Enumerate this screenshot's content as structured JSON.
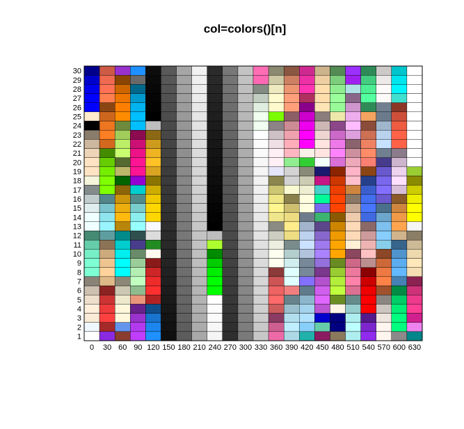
{
  "chart_data": {
    "type": "heatmap",
    "title": "col=colors()[n]",
    "xlabel": "",
    "ylabel": "",
    "x_tick_labels": [
      0,
      30,
      60,
      90,
      120,
      150,
      180,
      210,
      240,
      270,
      300,
      330,
      360,
      390,
      420,
      450,
      480,
      510,
      540,
      570,
      600,
      630
    ],
    "y_tick_labels": [
      1,
      2,
      3,
      4,
      5,
      6,
      7,
      8,
      9,
      10,
      11,
      12,
      13,
      14,
      15,
      16,
      17,
      18,
      19,
      20,
      21,
      22,
      23,
      24,
      25,
      26,
      27,
      28,
      29,
      30
    ],
    "cell_index_rule": "n = column + row",
    "cell_colors_by_column": [
      [
        "#ffffff",
        "#f0f8ff",
        "#faebd7",
        "#ffefdb",
        "#eedfcc",
        "#cdc0b0",
        "#8b8378",
        "#7fffd4",
        "#7fffd4",
        "#76eec6",
        "#66cdaa",
        "#458b74",
        "#f0ffff",
        "#f0ffff",
        "#e0eeee",
        "#c1cdcd",
        "#838b8b",
        "#f5f5dc",
        "#ffe4c4",
        "#ffe4c4",
        "#eed5b7",
        "#cdb79e",
        "#8b7d6b",
        "#000000",
        "#ffebcd",
        "#0000ff",
        "#0000ff",
        "#0000ee",
        "#0000cd",
        "#00008b"
      ],
      [
        "#8a2be2",
        "#a52a2a",
        "#ff4040",
        "#ee3b3b",
        "#cd3333",
        "#8b2323",
        "#deb887",
        "#ffd39b",
        "#eec591",
        "#cdaa7d",
        "#8b7355",
        "#5f9ea0",
        "#98f5ff",
        "#8ee5ee",
        "#7ac5cd",
        "#53868b",
        "#7fff00",
        "#7fff00",
        "#76ee00",
        "#66cd00",
        "#458b00",
        "#d2691e",
        "#ff7f24",
        "#ee7621",
        "#cd661d",
        "#8b4513",
        "#ff7f50",
        "#ff7256",
        "#ee6a50",
        "#cd5b45"
      ],
      [
        "#8b3e2f",
        "#6495ed",
        "#fff8dc",
        "#fff8dc",
        "#eee8cd",
        "#cdc8b1",
        "#8b8878",
        "#00ffff",
        "#00ffff",
        "#00eeee",
        "#00cdcd",
        "#008b8b",
        "#b8860b",
        "#ffb90f",
        "#eead0e",
        "#cd950c",
        "#8b6508",
        "#006400",
        "#bdb76b",
        "#556b2f",
        "#caff70",
        "#bcee68",
        "#a2cd5a",
        "#6e8b3d",
        "#ff8c00",
        "#ff7f00",
        "#ee7600",
        "#cd6600",
        "#8b4500",
        "#9932cc"
      ],
      [
        "#bf3eff",
        "#b23aee",
        "#9a32cd",
        "#68228b",
        "#e9967a",
        "#8fbc8f",
        "#c1ffc1",
        "#b4eeb4",
        "#9bcd9b",
        "#698b69",
        "#483d8b",
        "#2f4f4f",
        "#97ffff",
        "#8deeee",
        "#79cdcd",
        "#528b8b",
        "#00ced1",
        "#9400d3",
        "#ff1493",
        "#ff1493",
        "#ee1289",
        "#cd1076",
        "#8b0a50",
        "#00bfff",
        "#00bfff",
        "#00b2ee",
        "#009acd",
        "#00688b",
        "#696969",
        "#1e90ff"
      ],
      [
        "#1e90ff",
        "#1c86ee",
        "#1874cd",
        "#104e8b",
        "#b22222",
        "#ff3030",
        "#ee2c2c",
        "#cd2626",
        "#8b1a1a",
        "#fffaf0",
        "#228b22",
        "#dcdcdc",
        "#f8f8ff",
        "#ffd700",
        "#ffd700",
        "#eec900",
        "#cdad00",
        "#8b7500",
        "#daa520",
        "#ffc125",
        "#eeb422",
        "#cd9b1d",
        "#8b6914",
        "#bebebe",
        "#000000",
        "#030303",
        "#050505",
        "#080808",
        "#0a0a0a",
        "#0d0d0d"
      ],
      [
        "#0f0f0f",
        "#121212",
        "#141414",
        "#171717",
        "#1a1a1a",
        "#1c1c1c",
        "#1f1f1f",
        "#212121",
        "#242424",
        "#262626",
        "#292929",
        "#2b2b2b",
        "#2e2e2e",
        "#303030",
        "#333333",
        "#363636",
        "#383838",
        "#3b3b3b",
        "#3d3d3d",
        "#404040",
        "#424242",
        "#454545",
        "#474747",
        "#4a4a4a",
        "#4d4d4d",
        "#4f4f4f",
        "#525252",
        "#545454",
        "#575757",
        "#595959"
      ],
      [
        "#5c5c5c",
        "#5e5e5e",
        "#616161",
        "#636363",
        "#666666",
        "#696969",
        "#6b6b6b",
        "#6e6e6e",
        "#707070",
        "#737373",
        "#757575",
        "#787878",
        "#7a7a7a",
        "#7d7d7d",
        "#7f7f7f",
        "#828282",
        "#858585",
        "#878787",
        "#8a8a8a",
        "#8c8c8c",
        "#8f8f8f",
        "#919191",
        "#949494",
        "#969696",
        "#999999",
        "#9c9c9c",
        "#9e9e9e",
        "#a1a1a1",
        "#a3a3a3",
        "#a6a6a6"
      ],
      [
        "#a8a8a8",
        "#ababab",
        "#adadad",
        "#b0b0b0",
        "#b3b3b3",
        "#b5b5b5",
        "#b8b8b8",
        "#bababa",
        "#bdbdbd",
        "#bfbfbf",
        "#c2c2c2",
        "#c4c4c4",
        "#c7c7c7",
        "#c9c9c9",
        "#cccccc",
        "#cfcfcf",
        "#d1d1d1",
        "#d4d4d4",
        "#d6d6d6",
        "#d9d9d9",
        "#dbdbdb",
        "#dedede",
        "#e0e0e0",
        "#e3e3e3",
        "#e5e5e5",
        "#e8e8e8",
        "#ebebeb",
        "#ededed",
        "#f0f0f0",
        "#f2f2f2"
      ],
      [
        "#f5f5f5",
        "#f7f7f7",
        "#fafafa",
        "#fcfcfc",
        "#ffffff",
        "#00ff00",
        "#00ff00",
        "#00ee00",
        "#00cd00",
        "#008b00",
        "#adff2f",
        "#bebebe",
        "#000000",
        "#030303",
        "#050505",
        "#080808",
        "#0a0a0a",
        "#0d0d0d",
        "#0f0f0f",
        "#121212",
        "#141414",
        "#171717",
        "#1a1a1a",
        "#1c1c1c",
        "#1f1f1f",
        "#212121",
        "#242424",
        "#262626",
        "#292929",
        "#2b2b2b"
      ],
      [
        "#2e2e2e",
        "#303030",
        "#333333",
        "#363636",
        "#383838",
        "#3b3b3b",
        "#3d3d3d",
        "#404040",
        "#424242",
        "#454545",
        "#474747",
        "#4a4a4a",
        "#4d4d4d",
        "#4f4f4f",
        "#525252",
        "#545454",
        "#575757",
        "#595959",
        "#5c5c5c",
        "#5e5e5e",
        "#616161",
        "#636363",
        "#666666",
        "#696969",
        "#6b6b6b",
        "#6e6e6e",
        "#707070",
        "#737373",
        "#757575",
        "#787878"
      ],
      [
        "#7a7a7a",
        "#7d7d7d",
        "#7f7f7f",
        "#828282",
        "#858585",
        "#878787",
        "#8a8a8a",
        "#8c8c8c",
        "#8f8f8f",
        "#919191",
        "#949494",
        "#969696",
        "#999999",
        "#9c9c9c",
        "#9e9e9e",
        "#a1a1a1",
        "#a3a3a3",
        "#a6a6a6",
        "#a8a8a8",
        "#ababab",
        "#adadad",
        "#b0b0b0",
        "#b3b3b3",
        "#b5b5b5",
        "#b8b8b8",
        "#bababa",
        "#bdbdbd",
        "#bfbfbf",
        "#c2c2c2",
        "#c4c4c4"
      ],
      [
        "#c7c7c7",
        "#c9c9c9",
        "#cccccc",
        "#cfcfcf",
        "#d1d1d1",
        "#d4d4d4",
        "#d6d6d6",
        "#d9d9d9",
        "#dbdbdb",
        "#dedede",
        "#e0e0e0",
        "#e3e3e3",
        "#e5e5e5",
        "#e8e8e8",
        "#ebebeb",
        "#ededed",
        "#f0f0f0",
        "#f2f2f2",
        "#f5f5f5",
        "#f7f7f7",
        "#fafafa",
        "#fcfcfc",
        "#ffffff",
        "#f0fff0",
        "#f0fff0",
        "#e0eee0",
        "#c1cdc1",
        "#838b83",
        "#ff69b4",
        "#ff6eb4"
      ],
      [
        "#ee6aa7",
        "#cd6090",
        "#8b3a62",
        "#cd5c5c",
        "#ff6a6a",
        "#ee6363",
        "#cd5555",
        "#8b3a3a",
        "#fffff0",
        "#fffff0",
        "#eeeee0",
        "#cdcdc1",
        "#8b8b83",
        "#f0e68c",
        "#fff68f",
        "#eee685",
        "#cdc673",
        "#8b864e",
        "#e6e6fa",
        "#fff0f5",
        "#fff0f5",
        "#eee0e5",
        "#cdc1c5",
        "#8b8386",
        "#7cfc00",
        "#fffacd",
        "#fffacd",
        "#eee9bf",
        "#cdc9a5",
        "#8b8970"
      ],
      [
        "#add8e6",
        "#bfefff",
        "#b2dfee",
        "#9ac0cd",
        "#68838b",
        "#f08080",
        "#e0ffff",
        "#e0ffff",
        "#d1eeee",
        "#b4cdcd",
        "#7a8b8b",
        "#eedd82",
        "#ffec8b",
        "#eedc82",
        "#cdbe70",
        "#8b814c",
        "#fafad2",
        "#d3d3d3",
        "#d3d3d3",
        "#90ee90",
        "#ffb6c1",
        "#ffaeb9",
        "#eea2ad",
        "#cd8c95",
        "#8b5f65",
        "#ffa07a",
        "#ffa07a",
        "#ee9572",
        "#cd8162",
        "#8b5742"
      ],
      [
        "#20b2aa",
        "#87cefa",
        "#b0e2ff",
        "#a4d3ee",
        "#8db6cd",
        "#607b8b",
        "#8470ff",
        "#778899",
        "#778899",
        "#b0c4de",
        "#cae1ff",
        "#bcd2ee",
        "#a2b5cd",
        "#6e7b8b",
        "#ffffe0",
        "#ffffe0",
        "#eeeed1",
        "#cdcdb4",
        "#8b8b7a",
        "#32cd32",
        "#faf0e6",
        "#ff00ff",
        "#ff00ff",
        "#ee00ee",
        "#cd00cd",
        "#8b008b",
        "#b03060",
        "#ff34b3",
        "#ee30a7",
        "#cd2990"
      ],
      [
        "#8b1c62",
        "#66cdaa",
        "#0000cd",
        "#ba55d3",
        "#e066ff",
        "#d15fee",
        "#b452cd",
        "#7a378b",
        "#9370db",
        "#ab82ff",
        "#9f79ee",
        "#8968cd",
        "#5d478b",
        "#3cb371",
        "#7b68ee",
        "#00fa9a",
        "#48d1cc",
        "#c71585",
        "#191970",
        "#f5fffa",
        "#ffe4e1",
        "#ffe4e1",
        "#eed5d2",
        "#cdb7b5",
        "#8b7d7b",
        "#ffe4b5",
        "#ffdead",
        "#ffdead",
        "#eecfa1",
        "#cdb38b"
      ],
      [
        "#8b795e",
        "#000080",
        "#000080",
        "#fdf5e6",
        "#6b8e23",
        "#c0ff3e",
        "#b3ee3a",
        "#9acd32",
        "#698b22",
        "#ffa500",
        "#ffa500",
        "#ee9a00",
        "#cd8500",
        "#8b5a00",
        "#ff4500",
        "#ff4500",
        "#ee4000",
        "#cd3700",
        "#8b2500",
        "#da70d6",
        "#ff83fa",
        "#ee7ae9",
        "#cd69c9",
        "#8b4789",
        "#eee8aa",
        "#98fb98",
        "#9aff9a",
        "#90ee90",
        "#7ccd7c",
        "#548b54"
      ],
      [
        "#afeeee",
        "#bbffff",
        "#aeeeee",
        "#96cdcd",
        "#668b8b",
        "#db7093",
        "#ff82ab",
        "#ee799f",
        "#cd6889",
        "#8b475d",
        "#ffefd5",
        "#ffdab9",
        "#ffdab9",
        "#eecbad",
        "#cdaf95",
        "#8b7765",
        "#cd853f",
        "#ffc0cb",
        "#ffb5c5",
        "#eea9b8",
        "#cd919e",
        "#8b636c",
        "#dda0dd",
        "#ffbbff",
        "#eeaeee",
        "#cd96cd",
        "#8b668b",
        "#b0e0e6",
        "#a020f0",
        "#9b30ff"
      ],
      [
        "#912cee",
        "#7d26cd",
        "#551a8b",
        "#ff0000",
        "#ff0000",
        "#ee0000",
        "#cd0000",
        "#8b0000",
        "#bc8f8f",
        "#ffc1c1",
        "#eeb4b4",
        "#cd9b9b",
        "#8b6969",
        "#4169e1",
        "#4876ff",
        "#436eee",
        "#3a5fcd",
        "#27408b",
        "#8b4513",
        "#fa8072",
        "#ff8c69",
        "#ee8262",
        "#cd7054",
        "#8b4c39",
        "#f4a460",
        "#2e8b57",
        "#54ff9f",
        "#4eee94",
        "#43cd80",
        "#2e8b57"
      ],
      [
        "#fff5ee",
        "#fff5ee",
        "#eee5de",
        "#cdc5bf",
        "#8b8682",
        "#a0522d",
        "#ff8247",
        "#ee7942",
        "#cd6839",
        "#8b4726",
        "#87ceeb",
        "#87ceff",
        "#7ec0ee",
        "#6ca6cd",
        "#4a708b",
        "#6a5acd",
        "#836fff",
        "#7a67ee",
        "#6959cd",
        "#473c8b",
        "#708090",
        "#c6e2ff",
        "#b9d3ee",
        "#9fb6cd",
        "#6c7b8b",
        "#708090",
        "#fffafa",
        "#fffafa",
        "#eee9e9",
        "#cdc9c9"
      ],
      [
        "#8b8989",
        "#00ff7f",
        "#00ff7f",
        "#00ee76",
        "#00cd66",
        "#008b45",
        "#4682b4",
        "#63b8ff",
        "#5cacee",
        "#4f94cd",
        "#36648b",
        "#d2b48c",
        "#ffa54f",
        "#ee9a49",
        "#cd853f",
        "#8b5a2b",
        "#d8bfd8",
        "#ffe1ff",
        "#eed2ee",
        "#cdb5cd",
        "#8b7b8b",
        "#ff6347",
        "#ff6347",
        "#ee5c42",
        "#cd4f39",
        "#8b3626",
        "#40e0d0",
        "#00f5ff",
        "#00e5ee",
        "#00c5cd"
      ],
      [
        "#00868b",
        "#ee82ee",
        "#d02090",
        "#ff3e96",
        "#ee3a8c",
        "#cd3278",
        "#8b2252",
        "#f5deb3",
        "#ffe7ba",
        "#eed8ae",
        "#cdba96",
        "#8b7e66",
        "#f5f5f5",
        "#ffff00",
        "#ffff00",
        "#eeee00",
        "#cdcd00",
        "#8b8b00",
        "#9acd32",
        "#ffffff",
        "#ffffff",
        "#ffffff",
        "#ffffff",
        "#ffffff",
        "#ffffff",
        "#ffffff",
        "#ffffff",
        "#ffffff",
        "#ffffff",
        "#ffffff"
      ]
    ]
  }
}
